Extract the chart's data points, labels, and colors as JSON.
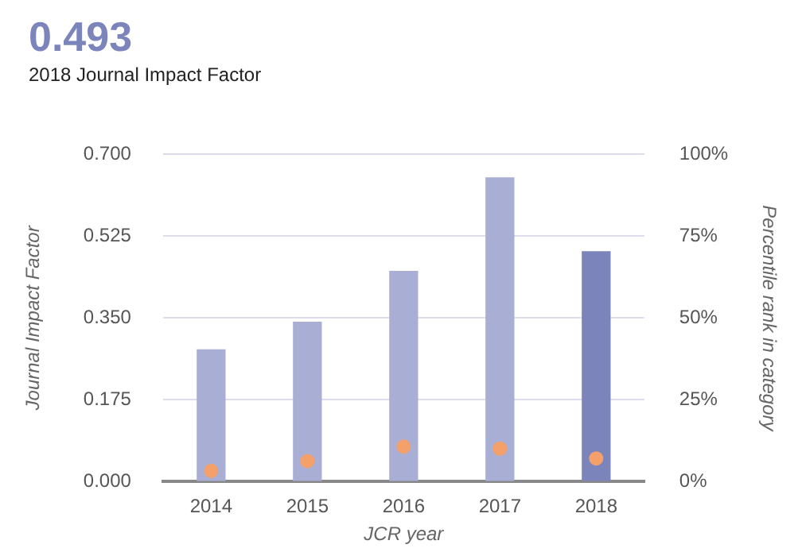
{
  "chart_data": {
    "type": "bar",
    "title": "0.493",
    "subtitle": "2018 Journal Impact Factor",
    "xlabel": "JCR year",
    "ylabel": "Journal Impact Factor",
    "y2label": "Percentile rank in category",
    "categories": [
      "2014",
      "2015",
      "2016",
      "2017",
      "2018"
    ],
    "series": [
      {
        "colors": [
          "#a9aed4",
          "#a9aed4",
          "#a9aed4",
          "#a9aed4",
          "#7b84bb"
        ],
        "values": [
          0.283,
          0.342,
          0.451,
          0.651,
          0.493
        ]
      },
      {
        "type": "scatter",
        "axis": "y2",
        "color": "#f4a06b",
        "marker": "circle",
        "values": [
          3.3,
          6.3,
          10.7,
          10.1,
          7.1
        ]
      }
    ],
    "ylim": [
      0,
      0.7
    ],
    "yticks": [
      {
        "value": 0,
        "label": "0.000"
      },
      {
        "value": 0.175,
        "label": "0.175"
      },
      {
        "value": 0.35,
        "label": "0.350"
      },
      {
        "value": 0.525,
        "label": "0.525"
      },
      {
        "value": 0.7,
        "label": "0.700"
      }
    ],
    "y2lim": [
      0,
      100
    ],
    "y2ticks": [
      {
        "value": 0,
        "label": "0%"
      },
      {
        "value": 25,
        "label": "25%"
      },
      {
        "value": 50,
        "label": "50%"
      },
      {
        "value": 75,
        "label": "75%"
      },
      {
        "value": 100,
        "label": "100%"
      }
    ],
    "grid": "y",
    "legend": false
  }
}
